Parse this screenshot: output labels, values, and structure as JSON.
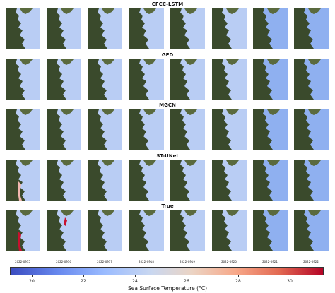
{
  "rows": [
    {
      "title": "CFCC-LSTM"
    },
    {
      "title": "GED"
    },
    {
      "title": "MGCN"
    },
    {
      "title": "ST-UNet"
    },
    {
      "title": "True"
    }
  ],
  "dates": [
    "2022-0915",
    "2022-0916",
    "2022-0917",
    "2022-0918",
    "2022-0919",
    "2022-0920",
    "2022-0921",
    "2022-0922"
  ],
  "colorbar": {
    "label": "Sea Surface Temperature (°C)",
    "ticks": [
      "20",
      "22",
      "24",
      "26",
      "28",
      "30"
    ],
    "colors": {
      "cold": "#3b4cc0",
      "mid": "#dddddd",
      "hot": "#b40426"
    }
  },
  "map": {
    "land": "#3a4a2c",
    "land_light": "#5a6a3e",
    "sea": "#b9cdf4",
    "sea_deep": "#8fb0f0"
  }
}
